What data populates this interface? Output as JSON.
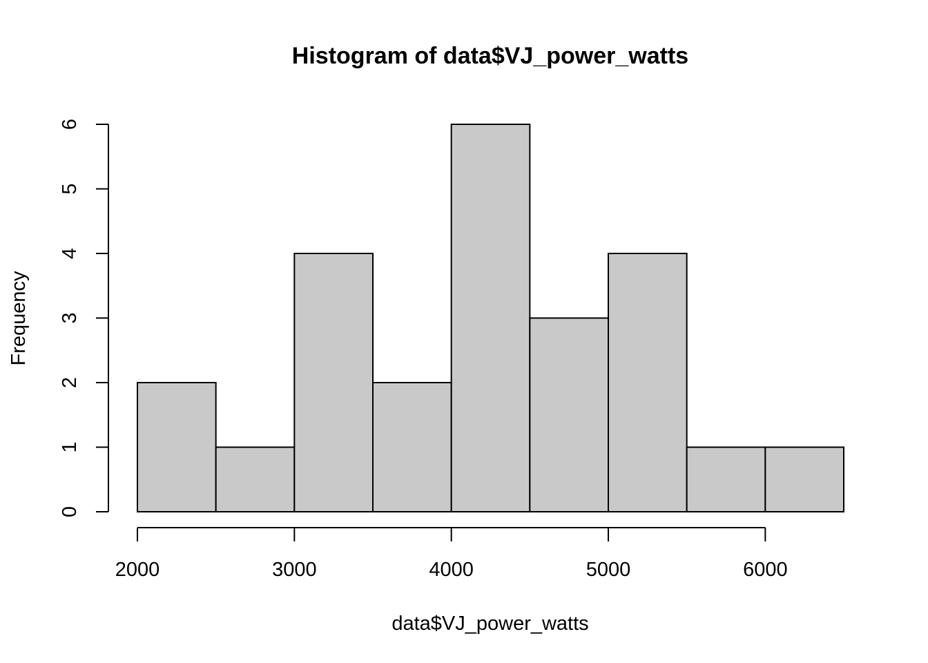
{
  "chart_data": {
    "type": "bar",
    "title": "Histogram of data$VJ_power_watts",
    "xlabel": "data$VJ_power_watts",
    "ylabel": "Frequency",
    "bins": [
      {
        "from": 2000,
        "to": 2500,
        "count": 2
      },
      {
        "from": 2500,
        "to": 3000,
        "count": 1
      },
      {
        "from": 3000,
        "to": 3500,
        "count": 4
      },
      {
        "from": 3500,
        "to": 4000,
        "count": 2
      },
      {
        "from": 4000,
        "to": 4500,
        "count": 6
      },
      {
        "from": 4500,
        "to": 5000,
        "count": 3
      },
      {
        "from": 5000,
        "to": 5500,
        "count": 4
      },
      {
        "from": 5500,
        "to": 6000,
        "count": 1
      },
      {
        "from": 6000,
        "to": 6500,
        "count": 1
      }
    ],
    "xlim": [
      2000,
      6500
    ],
    "ylim": [
      0,
      6
    ],
    "x_ticks": [
      "2000",
      "3000",
      "4000",
      "5000",
      "6000"
    ],
    "y_ticks": [
      "0",
      "1",
      "2",
      "3",
      "4",
      "5",
      "6"
    ],
    "bar_color": "#c9c9c9",
    "grid": false,
    "legend": "none"
  }
}
